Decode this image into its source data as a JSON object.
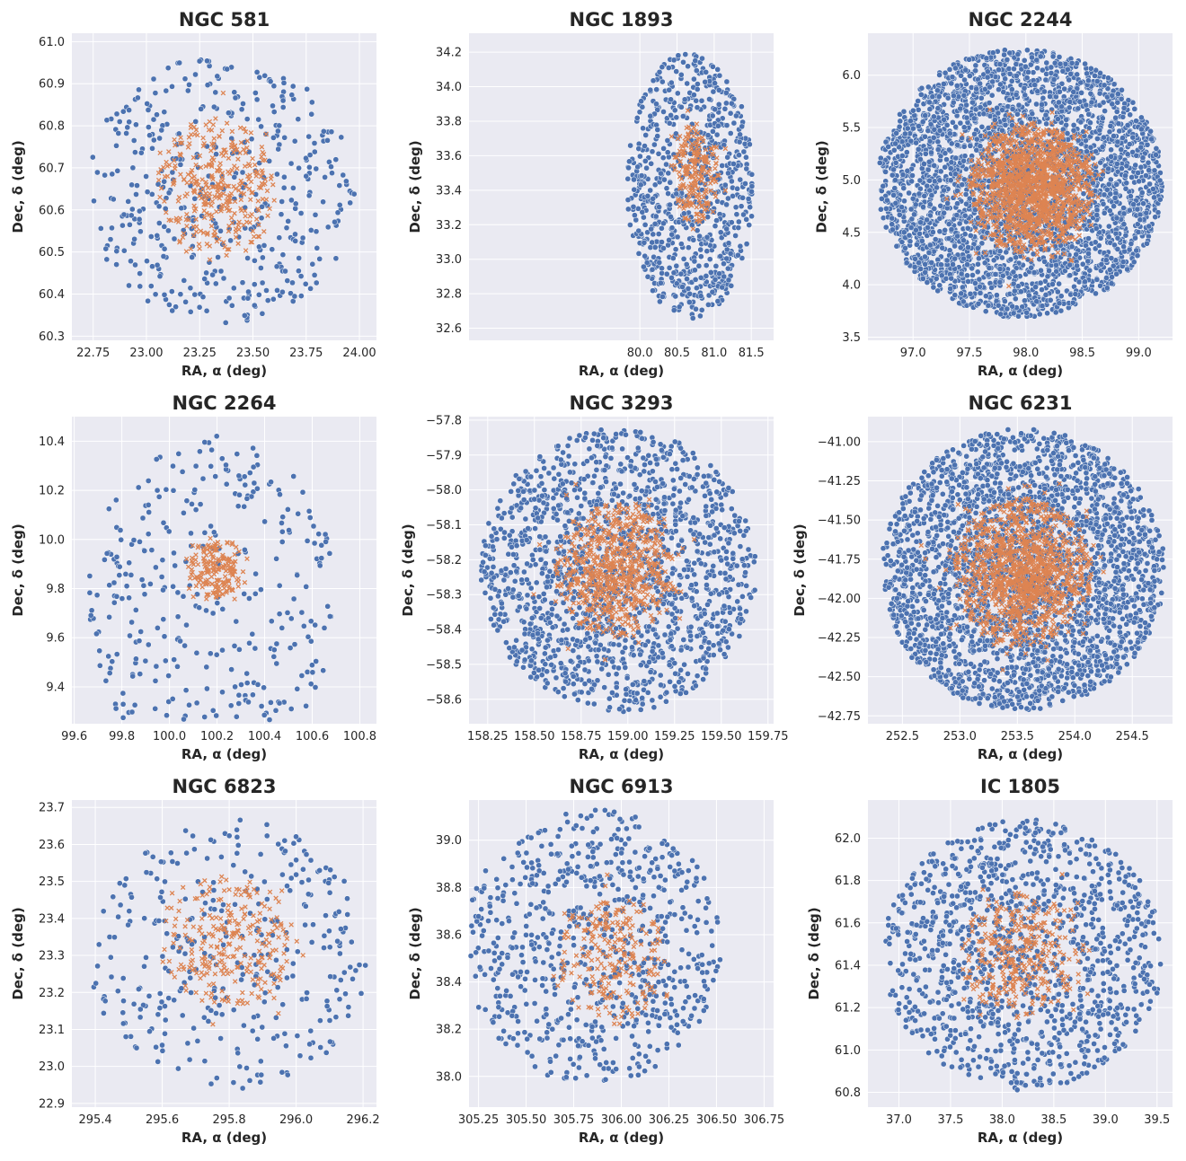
{
  "colors": {
    "background": "#eaeaf2",
    "grid": "#ffffff",
    "members": "#4c72b0",
    "cluster": "#dd8452"
  },
  "chart_data": [
    {
      "type": "scatter",
      "title": "NGC 581",
      "xlabel": "RA, α (deg)",
      "ylabel": "Dec, δ (deg)",
      "xlim": [
        22.65,
        24.08
      ],
      "ylim": [
        60.29,
        61.02
      ],
      "xticks": [
        "22.75",
        "23.00",
        "23.25",
        "23.50",
        "23.75",
        "24.00"
      ],
      "yticks": [
        "60.3",
        "60.4",
        "60.5",
        "60.6",
        "60.7",
        "60.8",
        "60.9",
        "61.0"
      ],
      "field": {
        "center": [
          23.35,
          60.65
        ],
        "radius": [
          0.65,
          0.33
        ],
        "count": 420
      },
      "cluster": {
        "center": [
          23.33,
          60.65
        ],
        "radius": [
          0.28,
          0.17
        ],
        "count": 330
      },
      "grid": true,
      "legend": "none"
    },
    {
      "type": "scatter",
      "title": "NGC 1893",
      "xlabel": "RA, α (deg)",
      "ylabel": "Dec, δ (deg)",
      "xlim": [
        77.7,
        81.8
      ],
      "ylim": [
        32.53,
        34.31
      ],
      "xticks": [
        "80.0",
        "80.5",
        "81.0",
        "81.5"
      ],
      "yticks": [
        "32.6",
        "32.8",
        "33.0",
        "33.2",
        "33.4",
        "33.6",
        "33.8",
        "34.0",
        "34.2"
      ],
      "field": {
        "center": [
          80.68,
          33.43
        ],
        "radius": [
          0.88,
          0.8
        ],
        "count": 760
      },
      "cluster": {
        "center": [
          80.75,
          33.5
        ],
        "radius": [
          0.33,
          0.3
        ],
        "count": 220
      },
      "grid": true,
      "legend": "none"
    },
    {
      "type": "scatter",
      "title": "NGC 2244",
      "xlabel": "RA, α (deg)",
      "ylabel": "Dec, δ (deg)",
      "xlim": [
        96.6,
        99.3
      ],
      "ylim": [
        3.47,
        6.4
      ],
      "xticks": [
        "97.0",
        "97.5",
        "98.0",
        "98.5",
        "99.0"
      ],
      "yticks": [
        "3.5",
        "4.0",
        "4.5",
        "5.0",
        "5.5",
        "6.0"
      ],
      "field": {
        "center": [
          97.95,
          4.97
        ],
        "radius": [
          1.3,
          1.32
        ],
        "count": 3200
      },
      "cluster": {
        "center": [
          98.05,
          4.93
        ],
        "radius": [
          0.55,
          0.62
        ],
        "count": 1400
      },
      "grid": true,
      "legend": "none"
    },
    {
      "type": "scatter",
      "title": "NGC 2264",
      "xlabel": "RA, α (deg)",
      "ylabel": "Dec, δ (deg)",
      "xlim": [
        99.59,
        100.87
      ],
      "ylim": [
        9.25,
        10.5
      ],
      "xticks": [
        "99.6",
        "99.8",
        "100.0",
        "100.2",
        "100.4",
        "100.6",
        "100.8"
      ],
      "yticks": [
        "9.4",
        "9.6",
        "9.8",
        "10.0",
        "10.2",
        "10.4"
      ],
      "field": {
        "center": [
          100.18,
          9.75
        ],
        "radius": [
          0.55,
          0.7
        ],
        "count": 330
      },
      "cluster": {
        "center": [
          100.2,
          9.88
        ],
        "radius": [
          0.12,
          0.13
        ],
        "count": 180
      },
      "grid": true,
      "legend": "none"
    },
    {
      "type": "scatter",
      "title": "NGC 3293",
      "xlabel": "RA, α (deg)",
      "ylabel": "Dec, δ (deg)",
      "xlim": [
        158.15,
        159.78
      ],
      "ylim": [
        -58.67,
        -57.79
      ],
      "xticks": [
        "158.25",
        "158.50",
        "158.75",
        "159.00",
        "159.25",
        "159.50",
        "159.75"
      ],
      "yticks": [
        "-57.8",
        "-57.9",
        "-58.0",
        "-58.1",
        "-58.2",
        "-58.3",
        "-58.4",
        "-58.5",
        "-58.6"
      ],
      "field": {
        "center": [
          158.95,
          -58.23
        ],
        "radius": [
          0.76,
          0.42
        ],
        "count": 1500
      },
      "cluster": {
        "center": [
          158.93,
          -58.23
        ],
        "radius": [
          0.32,
          0.19
        ],
        "count": 700
      },
      "grid": true,
      "legend": "none"
    },
    {
      "type": "scatter",
      "title": "NGC 6231",
      "xlabel": "RA, α (deg)",
      "ylabel": "Dec, δ (deg)",
      "xlim": [
        252.2,
        254.85
      ],
      "ylim": [
        -42.8,
        -40.84
      ],
      "xticks": [
        "252.5",
        "253.0",
        "253.5",
        "254.0",
        "254.5"
      ],
      "yticks": [
        "-41.00",
        "-41.25",
        "-41.50",
        "-41.75",
        "-42.00",
        "-42.25",
        "-42.50",
        "-42.75"
      ],
      "field": {
        "center": [
          253.55,
          -41.82
        ],
        "radius": [
          1.27,
          0.93
        ],
        "count": 2600
      },
      "cluster": {
        "center": [
          253.55,
          -41.83
        ],
        "radius": [
          0.6,
          0.47
        ],
        "count": 1200
      },
      "grid": true,
      "legend": "none"
    },
    {
      "type": "scatter",
      "title": "NGC 6823",
      "xlabel": "RA, α (deg)",
      "ylabel": "Dec, δ (deg)",
      "xlim": [
        295.33,
        296.24
      ],
      "ylim": [
        22.89,
        23.72
      ],
      "xticks": [
        "295.4",
        "295.6",
        "295.8",
        "296.0",
        "296.2"
      ],
      "yticks": [
        "22.9",
        "23.0",
        "23.1",
        "23.2",
        "23.3",
        "23.4",
        "23.5",
        "23.6",
        "23.7"
      ],
      "field": {
        "center": [
          295.8,
          23.3
        ],
        "radius": [
          0.43,
          0.38
        ],
        "count": 330
      },
      "cluster": {
        "center": [
          295.8,
          23.34
        ],
        "radius": [
          0.2,
          0.18
        ],
        "count": 260
      },
      "grid": true,
      "legend": "none"
    },
    {
      "type": "scatter",
      "title": "NGC 6913",
      "xlabel": "RA, α (deg)",
      "ylabel": "Dec, δ (deg)",
      "xlim": [
        305.2,
        306.8
      ],
      "ylim": [
        37.87,
        39.17
      ],
      "xticks": [
        "305.25",
        "305.50",
        "305.75",
        "306.00",
        "306.25",
        "306.50",
        "306.75"
      ],
      "yticks": [
        "38.0",
        "38.2",
        "38.4",
        "38.6",
        "38.8",
        "39.0"
      ],
      "field": {
        "center": [
          305.85,
          38.55
        ],
        "radius": [
          0.7,
          0.6
        ],
        "count": 700
      },
      "cluster": {
        "center": [
          305.95,
          38.5
        ],
        "radius": [
          0.28,
          0.28
        ],
        "count": 230
      },
      "grid": true,
      "legend": "none"
    },
    {
      "type": "scatter",
      "title": "IC 1805",
      "xlabel": "RA, α (deg)",
      "ylabel": "Dec, δ (deg)",
      "xlim": [
        36.7,
        39.65
      ],
      "ylim": [
        60.73,
        62.18
      ],
      "xticks": [
        "37.0",
        "37.5",
        "38.0",
        "38.5",
        "39.0",
        "39.5"
      ],
      "yticks": [
        "60.8",
        "61.0",
        "61.2",
        "61.4",
        "61.6",
        "61.8",
        "62.0"
      ],
      "field": {
        "center": [
          38.2,
          61.45
        ],
        "radius": [
          1.4,
          0.66
        ],
        "count": 1150
      },
      "cluster": {
        "center": [
          38.2,
          61.45
        ],
        "radius": [
          0.6,
          0.3
        ],
        "count": 330
      },
      "grid": true,
      "legend": "none"
    }
  ]
}
